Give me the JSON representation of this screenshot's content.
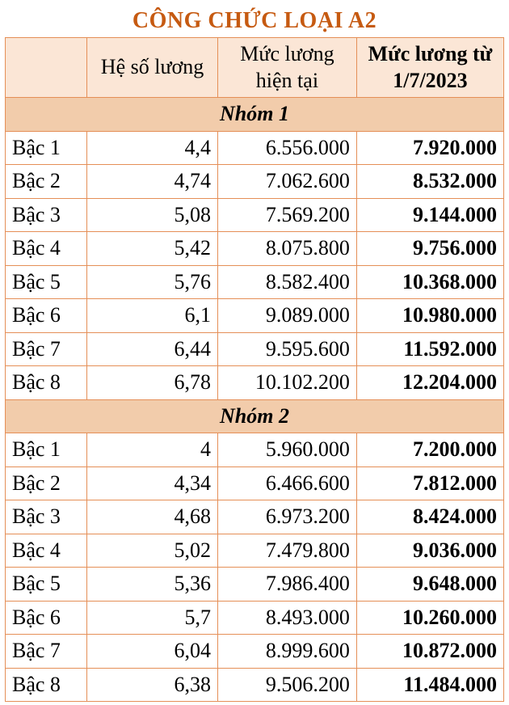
{
  "colors": {
    "title": "#c65a11",
    "border": "#e58f57",
    "header_bg": "#fbe6d6",
    "group1_bg": "#f2ccab",
    "group2_bg": "#f2ccab",
    "row_bg": "#ffffff",
    "text": "#000000"
  },
  "title": "CÔNG CHỨC LOẠI A2",
  "headers": {
    "col1": "",
    "col2": "Hệ số lương",
    "col3": "Mức lương hiện tại",
    "col4": "Mức lương từ 1/7/2023"
  },
  "groups": [
    {
      "label": "Nhóm 1",
      "rows": [
        {
          "name": "Bậc 1",
          "coef": "4,4",
          "current": "6.556.000",
          "new": "7.920.000"
        },
        {
          "name": "Bậc 2",
          "coef": "4,74",
          "current": "7.062.600",
          "new": "8.532.000"
        },
        {
          "name": "Bậc 3",
          "coef": "5,08",
          "current": "7.569.200",
          "new": "9.144.000"
        },
        {
          "name": "Bậc 4",
          "coef": "5,42",
          "current": "8.075.800",
          "new": "9.756.000"
        },
        {
          "name": "Bậc 5",
          "coef": "5,76",
          "current": "8.582.400",
          "new": "10.368.000"
        },
        {
          "name": "Bậc 6",
          "coef": "6,1",
          "current": "9.089.000",
          "new": "10.980.000"
        },
        {
          "name": "Bậc 7",
          "coef": "6,44",
          "current": "9.595.600",
          "new": "11.592.000"
        },
        {
          "name": "Bậc 8",
          "coef": "6,78",
          "current": "10.102.200",
          "new": "12.204.000"
        }
      ]
    },
    {
      "label": "Nhóm 2",
      "rows": [
        {
          "name": "Bậc 1",
          "coef": "4",
          "current": "5.960.000",
          "new": "7.200.000"
        },
        {
          "name": "Bậc 2",
          "coef": "4,34",
          "current": "6.466.600",
          "new": "7.812.000"
        },
        {
          "name": "Bậc 3",
          "coef": "4,68",
          "current": "6.973.200",
          "new": "8.424.000"
        },
        {
          "name": "Bậc 4",
          "coef": "5,02",
          "current": "7.479.800",
          "new": "9.036.000"
        },
        {
          "name": "Bậc 5",
          "coef": "5,36",
          "current": "7.986.400",
          "new": "9.648.000"
        },
        {
          "name": "Bậc 6",
          "coef": "5,7",
          "current": "8.493.000",
          "new": "10.260.000"
        },
        {
          "name": "Bậc 7",
          "coef": "6,04",
          "current": "8.999.600",
          "new": "10.872.000"
        },
        {
          "name": "Bậc 8",
          "coef": "6,38",
          "current": "9.506.200",
          "new": "11.484.000"
        }
      ]
    }
  ]
}
